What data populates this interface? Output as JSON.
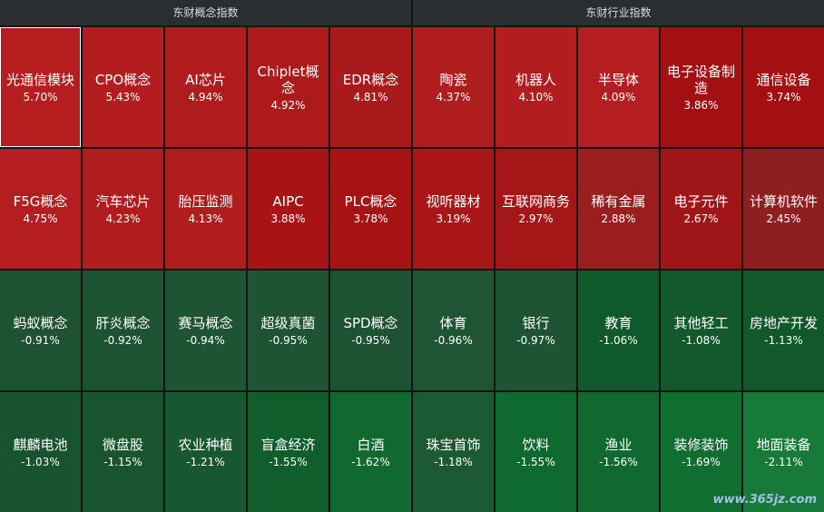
{
  "panels": [
    {
      "title": "东财概念指数",
      "tiles": [
        {
          "name": "光通信模块",
          "change": "5.70%",
          "color": "#b51d1f",
          "selected": true
        },
        {
          "name": "CPO概念",
          "change": "5.43%",
          "color": "#b41d20"
        },
        {
          "name": "AI芯片",
          "change": "4.94%",
          "color": "#b01b1d"
        },
        {
          "name": "Chiplet概念",
          "change": "4.92%",
          "color": "#ad1a1c"
        },
        {
          "name": "EDR概念",
          "change": "4.81%",
          "color": "#aa1a1c"
        },
        {
          "name": "F5G概念",
          "change": "4.75%",
          "color": "#b51e20"
        },
        {
          "name": "汽车芯片",
          "change": "4.23%",
          "color": "#b11d1f"
        },
        {
          "name": "胎压监测",
          "change": "4.13%",
          "color": "#b01d1f"
        },
        {
          "name": "AIPC",
          "change": "3.88%",
          "color": "#a81416"
        },
        {
          "name": "PLC概念",
          "change": "3.78%",
          "color": "#a51315"
        },
        {
          "name": "蚂蚁概念",
          "change": "-0.91%",
          "color": "#1e5232"
        },
        {
          "name": "肝炎概念",
          "change": "-0.92%",
          "color": "#1d5232"
        },
        {
          "name": "赛马概念",
          "change": "-0.94%",
          "color": "#1e5433"
        },
        {
          "name": "超级真菌",
          "change": "-0.95%",
          "color": "#1e5433"
        },
        {
          "name": "SPD概念",
          "change": "-0.95%",
          "color": "#1d5232"
        },
        {
          "name": "麒麟电池",
          "change": "-1.03%",
          "color": "#16532e"
        },
        {
          "name": "微盘股",
          "change": "-1.15%",
          "color": "#18552f"
        },
        {
          "name": "农业种植",
          "change": "-1.21%",
          "color": "#195730"
        },
        {
          "name": "盲盒经济",
          "change": "-1.55%",
          "color": "#0f5e2c"
        },
        {
          "name": "白酒",
          "change": "-1.62%",
          "color": "#106a30"
        }
      ]
    },
    {
      "title": "东财行业指数",
      "tiles": [
        {
          "name": "陶瓷",
          "change": "4.37%",
          "color": "#b01d1f"
        },
        {
          "name": "机器人",
          "change": "4.10%",
          "color": "#b21d1f"
        },
        {
          "name": "半导体",
          "change": "4.09%",
          "color": "#b41e20"
        },
        {
          "name": "电子设备制造",
          "change": "3.86%",
          "color": "#a31013"
        },
        {
          "name": "通信设备",
          "change": "3.74%",
          "color": "#a30f12"
        },
        {
          "name": "视听器材",
          "change": "3.19%",
          "color": "#a81618"
        },
        {
          "name": "互联网商务",
          "change": "2.97%",
          "color": "#a51618"
        },
        {
          "name": "稀有金属",
          "change": "2.88%",
          "color": "#9b1e1f"
        },
        {
          "name": "电子元件",
          "change": "2.67%",
          "color": "#a01517"
        },
        {
          "name": "计算机软件",
          "change": "2.45%",
          "color": "#8e1e1f"
        },
        {
          "name": "体育",
          "change": "-0.96%",
          "color": "#1f5534"
        },
        {
          "name": "银行",
          "change": "-0.97%",
          "color": "#1e5433"
        },
        {
          "name": "教育",
          "change": "-1.06%",
          "color": "#0f5a2a"
        },
        {
          "name": "其他轻工",
          "change": "-1.08%",
          "color": "#125a2b"
        },
        {
          "name": "房地产开发",
          "change": "-1.13%",
          "color": "#11592b"
        },
        {
          "name": "珠宝首饰",
          "change": "-1.18%",
          "color": "#1b5a32"
        },
        {
          "name": "饮料",
          "change": "-1.55%",
          "color": "#0f6a30"
        },
        {
          "name": "渔业",
          "change": "-1.56%",
          "color": "#106a30"
        },
        {
          "name": "装修装饰",
          "change": "-1.69%",
          "color": "#0f6e30"
        },
        {
          "name": "地面装备",
          "change": "-2.11%",
          "color": "#187a38"
        }
      ]
    }
  ],
  "watermark": "www.365jz.com"
}
